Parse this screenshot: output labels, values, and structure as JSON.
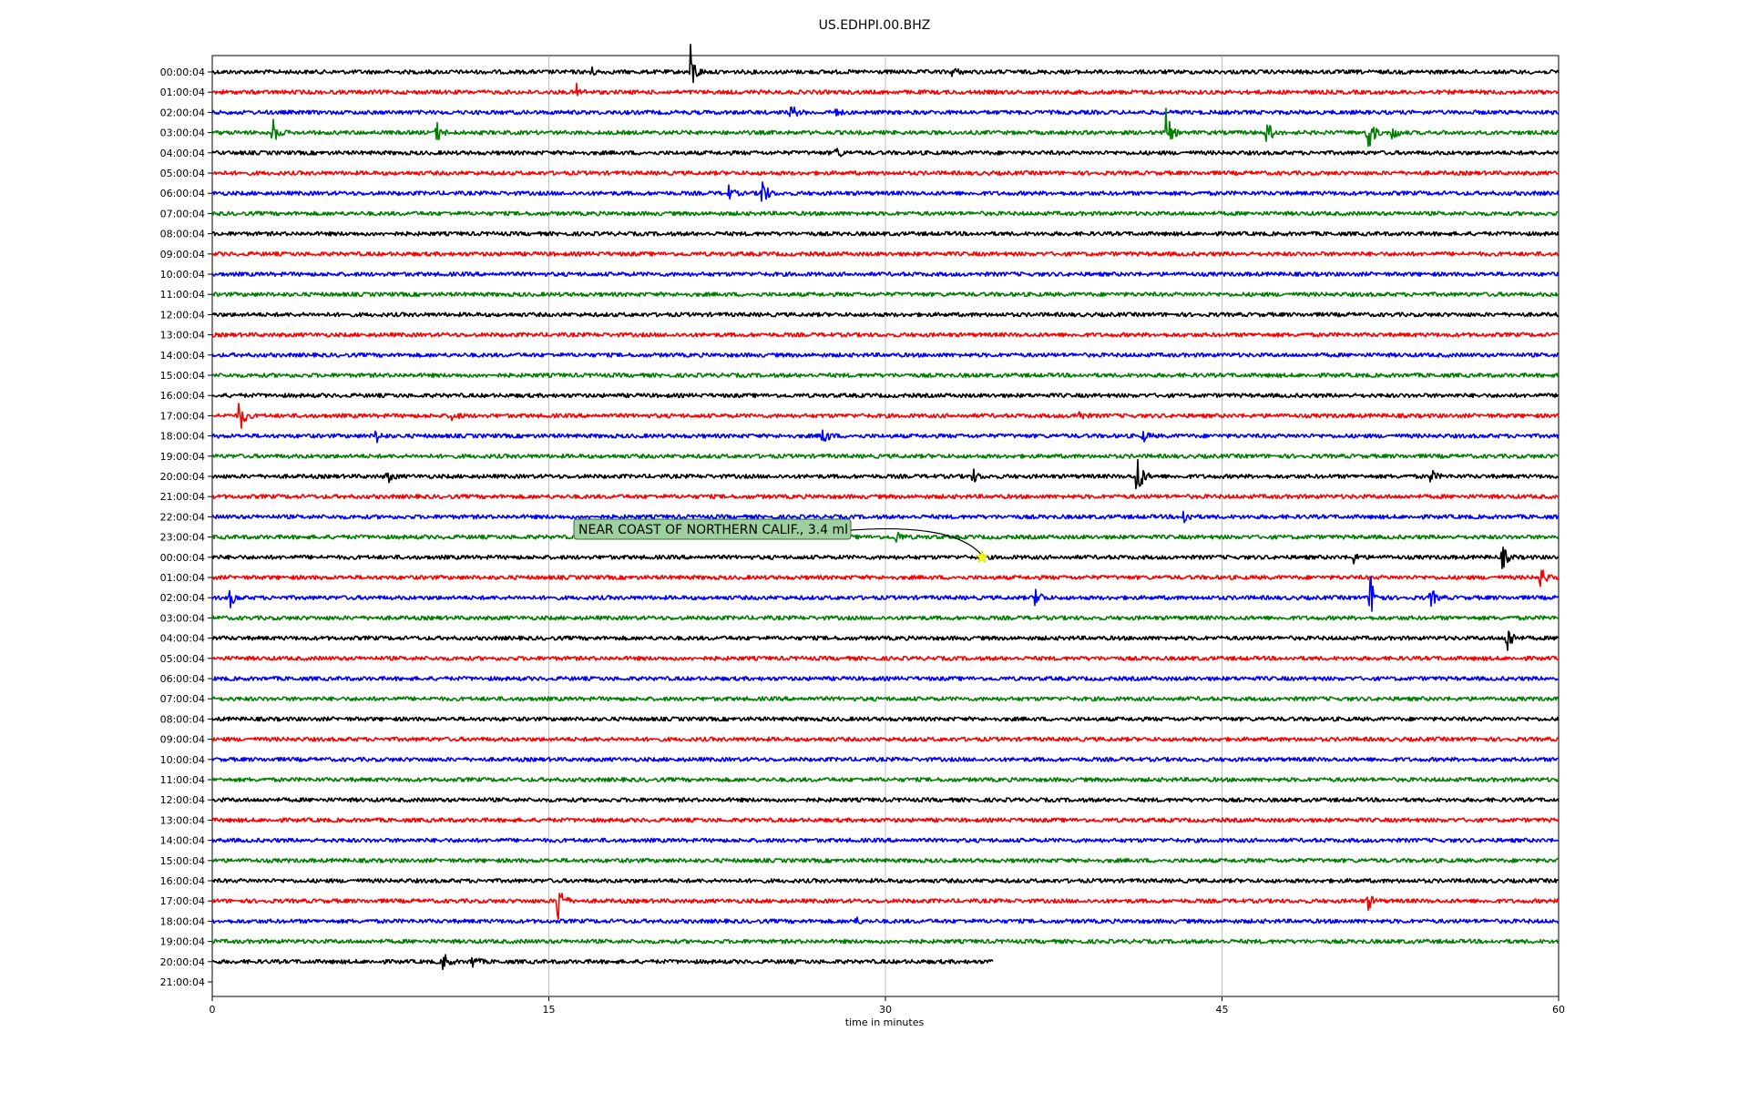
{
  "chart_data": {
    "type": "line",
    "title": "US.EDHPI.00.BHZ",
    "xlabel": "time in minutes",
    "ylabel": "",
    "xlim": [
      0,
      60
    ],
    "x_ticks": [
      "0",
      "15",
      "30",
      "45",
      "60"
    ],
    "grid": "vertical",
    "colors": [
      "#000000",
      "#ff0000",
      "#0000ff",
      "#008000"
    ],
    "row_labels": [
      "00:00:04",
      "01:00:04",
      "02:00:04",
      "03:00:04",
      "04:00:04",
      "05:00:04",
      "06:00:04",
      "07:00:04",
      "08:00:04",
      "09:00:04",
      "10:00:04",
      "11:00:04",
      "12:00:04",
      "13:00:04",
      "14:00:04",
      "15:00:04",
      "16:00:04",
      "17:00:04",
      "18:00:04",
      "19:00:04",
      "20:00:04",
      "21:00:04",
      "22:00:04",
      "23:00:04",
      "00:00:04",
      "01:00:04",
      "02:00:04",
      "03:00:04",
      "04:00:04",
      "05:00:04",
      "06:00:04",
      "07:00:04",
      "08:00:04",
      "09:00:04",
      "10:00:04",
      "11:00:04",
      "12:00:04",
      "13:00:04",
      "14:00:04",
      "15:00:04",
      "16:00:04",
      "17:00:04",
      "18:00:04",
      "19:00:04",
      "20:00:04",
      "21:00:04"
    ],
    "trace_end_minutes": 34.8,
    "events": [
      {
        "row": 0,
        "minute": 21.3,
        "amp": 1.6
      },
      {
        "row": 0,
        "minute": 16.8,
        "amp": 0.4
      },
      {
        "row": 0,
        "minute": 33.0,
        "amp": 0.3
      },
      {
        "row": 1,
        "minute": 16.2,
        "amp": 0.5
      },
      {
        "row": 2,
        "minute": 25.8,
        "amp": 0.5
      },
      {
        "row": 2,
        "minute": 27.7,
        "amp": 0.3
      },
      {
        "row": 3,
        "minute": 2.7,
        "amp": 0.8
      },
      {
        "row": 3,
        "minute": 10.0,
        "amp": 0.6
      },
      {
        "row": 3,
        "minute": 42.5,
        "amp": 1.4
      },
      {
        "row": 3,
        "minute": 47.0,
        "amp": 0.8
      },
      {
        "row": 3,
        "minute": 51.5,
        "amp": 1.5
      },
      {
        "row": 3,
        "minute": 52.6,
        "amp": 0.5
      },
      {
        "row": 4,
        "minute": 27.8,
        "amp": 0.4
      },
      {
        "row": 6,
        "minute": 24.5,
        "amp": 1.0
      },
      {
        "row": 6,
        "minute": 23.0,
        "amp": 0.4
      },
      {
        "row": 17,
        "minute": 1.2,
        "amp": 1.2
      },
      {
        "row": 17,
        "minute": 38.5,
        "amp": 0.5
      },
      {
        "row": 17,
        "minute": 10.7,
        "amp": 0.3
      },
      {
        "row": 18,
        "minute": 7.3,
        "amp": 0.4
      },
      {
        "row": 18,
        "minute": 27.2,
        "amp": 0.7
      },
      {
        "row": 18,
        "minute": 41.5,
        "amp": 0.3
      },
      {
        "row": 20,
        "minute": 41.2,
        "amp": 1.7
      },
      {
        "row": 20,
        "minute": 7.8,
        "amp": 0.4
      },
      {
        "row": 20,
        "minute": 33.9,
        "amp": 0.4
      },
      {
        "row": 20,
        "minute": 54.3,
        "amp": 0.4
      },
      {
        "row": 22,
        "minute": 43.3,
        "amp": 0.5
      },
      {
        "row": 23,
        "minute": 30.5,
        "amp": 0.4
      },
      {
        "row": 24,
        "minute": 57.5,
        "amp": 0.7
      },
      {
        "row": 24,
        "minute": 50.8,
        "amp": 0.4
      },
      {
        "row": 25,
        "minute": 59.2,
        "amp": 0.7
      },
      {
        "row": 26,
        "minute": 0.8,
        "amp": 0.5
      },
      {
        "row": 26,
        "minute": 36.7,
        "amp": 0.7
      },
      {
        "row": 26,
        "minute": 51.6,
        "amp": 1.5
      },
      {
        "row": 26,
        "minute": 54.3,
        "amp": 0.6
      },
      {
        "row": 28,
        "minute": 57.7,
        "amp": 1.0
      },
      {
        "row": 41,
        "minute": 15.4,
        "amp": 1.5
      },
      {
        "row": 41,
        "minute": 51.5,
        "amp": 0.5
      },
      {
        "row": 42,
        "minute": 28.6,
        "amp": 0.3
      },
      {
        "row": 44,
        "minute": 10.3,
        "amp": 0.6
      },
      {
        "row": 44,
        "minute": 11.6,
        "amp": 0.4
      }
    ],
    "annotation": {
      "text": "NEAR COAST OF NORTHERN CALIF., 3.4 ml",
      "row": 24,
      "minute": 34.3,
      "marker_color": "#ffff00"
    }
  }
}
